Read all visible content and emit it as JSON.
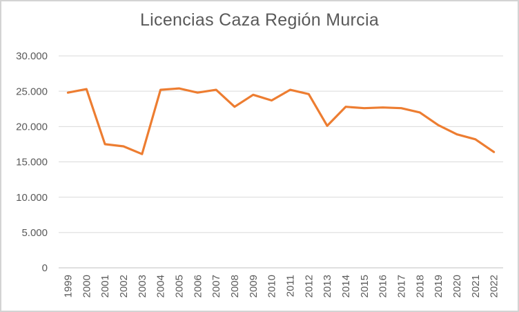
{
  "chart_data": {
    "type": "line",
    "title": "Licencias Caza Región Murcia",
    "xlabel": "",
    "ylabel": "",
    "legend": "none",
    "grid": true,
    "ylim": [
      0,
      30000
    ],
    "y_ticks": [
      0,
      5000,
      10000,
      15000,
      20000,
      25000,
      30000
    ],
    "y_tick_labels": [
      "0",
      "5.000",
      "10.000",
      "15.000",
      "20.000",
      "25.000",
      "30.000"
    ],
    "categories": [
      "1999",
      "2000",
      "2001",
      "2002",
      "2003",
      "2004",
      "2005",
      "2006",
      "2007",
      "2008",
      "2009",
      "2010",
      "2011",
      "2012",
      "2013",
      "2014",
      "2015",
      "2016",
      "2017",
      "2018",
      "2019",
      "2020",
      "2021",
      "2022"
    ],
    "values": [
      24800,
      25300,
      17500,
      17200,
      16100,
      25200,
      25400,
      24800,
      25200,
      22800,
      24500,
      23700,
      25200,
      24600,
      20100,
      22800,
      22600,
      22700,
      22600,
      22000,
      20200,
      18900,
      18200,
      16400
    ],
    "colors": {
      "series_line": "#ED7D31",
      "gridline": "#D9D9D9",
      "axis_line": "#BFBFBF",
      "tick_label": "#595959",
      "title": "#595959",
      "frame_border": "#D3D3D3",
      "background": "#FFFFFF"
    }
  }
}
